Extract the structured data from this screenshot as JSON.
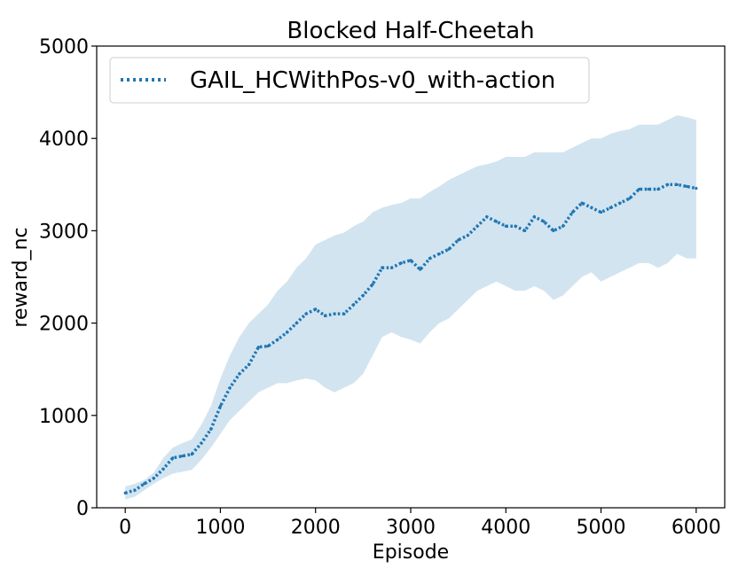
{
  "chart_data": {
    "type": "line",
    "title": "Blocked Half-Cheetah",
    "xlabel": "Episode",
    "ylabel": "reward_nc",
    "xlim": [
      -300,
      6300
    ],
    "ylim": [
      0,
      5000
    ],
    "xticks": [
      0,
      1000,
      2000,
      3000,
      4000,
      5000,
      6000
    ],
    "xtick_labels": [
      "0",
      "1000",
      "2000",
      "3000",
      "4000",
      "5000",
      "6000"
    ],
    "yticks": [
      0,
      1000,
      2000,
      3000,
      4000,
      5000
    ],
    "ytick_labels": [
      "0",
      "1000",
      "2000",
      "3000",
      "4000",
      "5000"
    ],
    "grid": false,
    "legend_position": "top-left",
    "series": [
      {
        "name": "GAIL_HCWithPos-v0_with-action",
        "color": "#1f77b4",
        "band_color": "#1f77b4",
        "line_style": "dotted",
        "x": [
          0,
          100,
          200,
          300,
          400,
          500,
          600,
          700,
          800,
          900,
          1000,
          1100,
          1200,
          1300,
          1400,
          1500,
          1600,
          1700,
          1800,
          1900,
          2000,
          2100,
          2200,
          2300,
          2400,
          2500,
          2600,
          2700,
          2800,
          2900,
          3000,
          3100,
          3200,
          3300,
          3400,
          3500,
          3600,
          3700,
          3800,
          3900,
          4000,
          4100,
          4200,
          4300,
          4400,
          4500,
          4600,
          4700,
          4800,
          4900,
          5000,
          5100,
          5200,
          5300,
          5400,
          5500,
          5600,
          5700,
          5800,
          5900,
          6000
        ],
        "mean": [
          160,
          190,
          260,
          320,
          420,
          540,
          560,
          580,
          700,
          850,
          1100,
          1300,
          1450,
          1550,
          1740,
          1750,
          1820,
          1900,
          2000,
          2100,
          2150,
          2080,
          2100,
          2100,
          2200,
          2300,
          2420,
          2600,
          2600,
          2650,
          2680,
          2580,
          2700,
          2750,
          2800,
          2900,
          2950,
          3050,
          3150,
          3100,
          3050,
          3050,
          3000,
          3150,
          3100,
          3000,
          3050,
          3200,
          3300,
          3250,
          3200,
          3250,
          3300,
          3350,
          3450,
          3450,
          3450,
          3500,
          3500,
          3480,
          3460
        ],
        "upper": [
          230,
          260,
          300,
          380,
          540,
          650,
          700,
          740,
          900,
          1100,
          1400,
          1650,
          1850,
          2000,
          2100,
          2200,
          2350,
          2450,
          2600,
          2700,
          2850,
          2900,
          2950,
          2980,
          3050,
          3100,
          3200,
          3250,
          3280,
          3300,
          3350,
          3350,
          3420,
          3480,
          3550,
          3600,
          3650,
          3700,
          3720,
          3750,
          3800,
          3800,
          3800,
          3850,
          3850,
          3850,
          3850,
          3900,
          3950,
          4000,
          4000,
          4050,
          4080,
          4100,
          4150,
          4150,
          4150,
          4200,
          4250,
          4230,
          4200
        ],
        "lower": [
          90,
          120,
          190,
          260,
          320,
          370,
          390,
          410,
          520,
          650,
          800,
          950,
          1050,
          1150,
          1250,
          1300,
          1350,
          1350,
          1380,
          1400,
          1380,
          1300,
          1250,
          1300,
          1350,
          1450,
          1650,
          1850,
          1900,
          1850,
          1820,
          1780,
          1900,
          2000,
          2050,
          2150,
          2250,
          2350,
          2400,
          2450,
          2400,
          2350,
          2350,
          2400,
          2350,
          2250,
          2300,
          2400,
          2500,
          2550,
          2450,
          2500,
          2550,
          2600,
          2650,
          2650,
          2600,
          2650,
          2750,
          2700,
          2700
        ]
      }
    ]
  }
}
